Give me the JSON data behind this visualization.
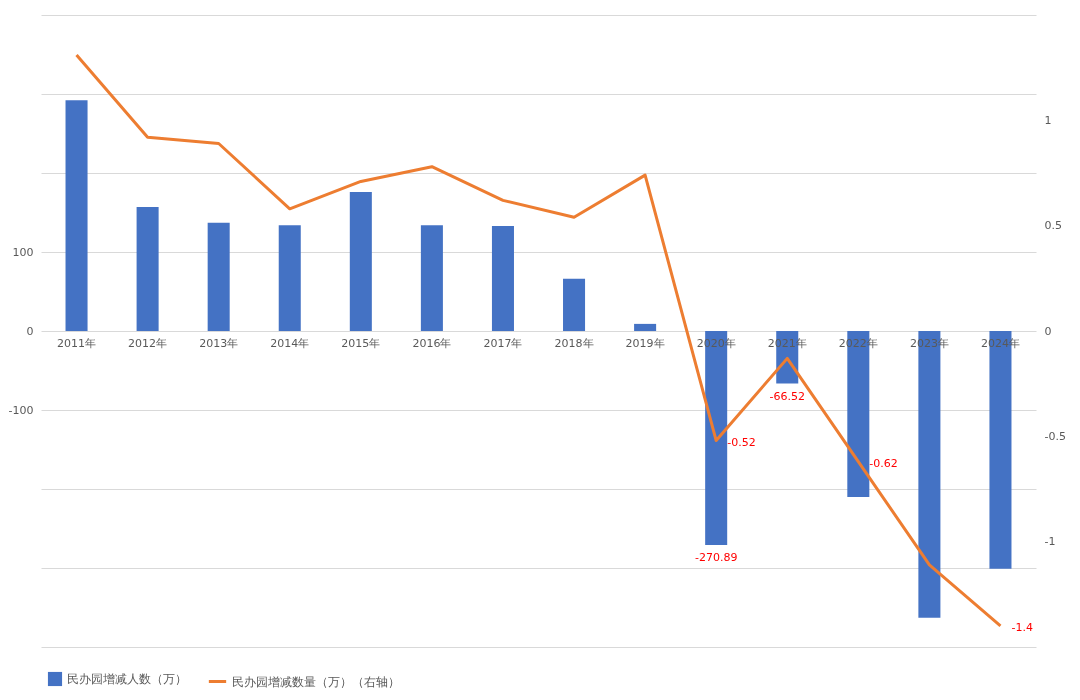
{
  "chart_data": {
    "type": "bar",
    "categories": [
      "2011年",
      "2012年",
      "2013年",
      "2014年",
      "2015年",
      "2016年",
      "2017年",
      "2018年",
      "2019年",
      "2020年",
      "2021年",
      "2022年",
      "2023年",
      "2024年"
    ],
    "series": [
      {
        "name": "民办园增减人数（万）",
        "color": "#4472c4",
        "values": [
          292,
          157,
          137,
          134,
          176,
          134,
          133,
          66,
          9,
          -270.89,
          -66.52,
          -210,
          -363,
          -301
        ],
        "value_labels": [
          null,
          null,
          null,
          null,
          null,
          null,
          null,
          null,
          null,
          "-270.89",
          "-66.52",
          null,
          null,
          null
        ]
      },
      {
        "name": "民办园增减数量（万）（右轴）",
        "type": "line",
        "axis": "y2",
        "color": "#ed7d31",
        "values": [
          1.31,
          0.92,
          0.89,
          0.58,
          0.71,
          0.78,
          0.62,
          0.54,
          0.74,
          -0.52,
          -0.13,
          -0.62,
          -1.11,
          -1.4
        ],
        "value_labels": [
          null,
          null,
          null,
          null,
          null,
          null,
          null,
          null,
          null,
          "-0.52",
          null,
          "-0.62",
          null,
          "-1.4"
        ]
      }
    ],
    "ylim": [
      -400,
      400
    ],
    "yticks": [
      {
        "value": 400,
        "label": null
      },
      {
        "value": 300,
        "label": null
      },
      {
        "value": 200,
        "label": null
      },
      100,
      0,
      -100,
      {
        "value": -200,
        "label": null
      },
      {
        "value": -300,
        "label": null
      },
      {
        "value": -400,
        "label": null
      }
    ],
    "y2lim": [
      -1.5,
      1.5
    ],
    "y2ticks": [
      1,
      0.5,
      0,
      -0.5,
      -1
    ],
    "grid": "y",
    "legend": "bottom"
  }
}
